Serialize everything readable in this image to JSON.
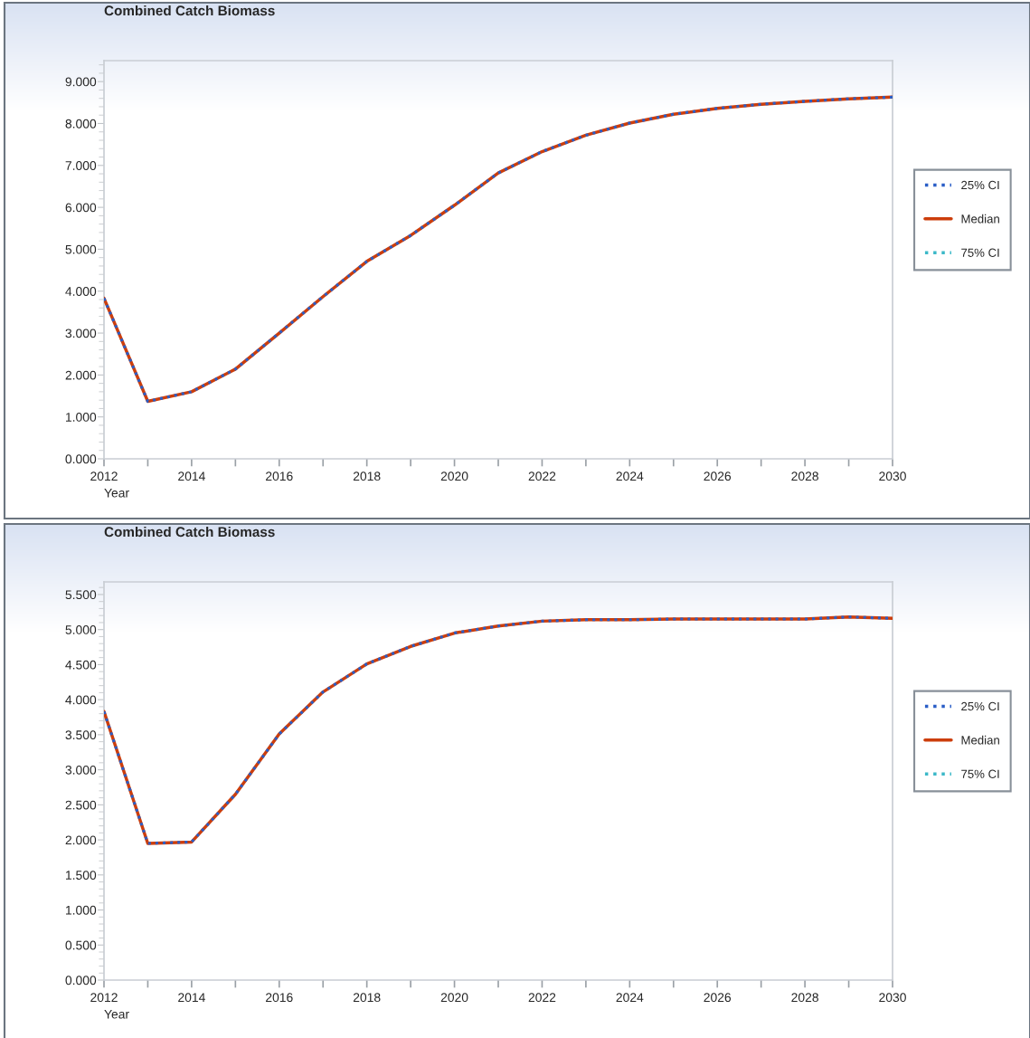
{
  "chart_data": [
    {
      "type": "line",
      "title": "Combined Catch Biomass",
      "xlabel": "Year",
      "legend": "right",
      "grid": false,
      "x": [
        2012,
        2013,
        2014,
        2015,
        2016,
        2017,
        2018,
        2019,
        2020,
        2021,
        2022,
        2023,
        2024,
        2025,
        2026,
        2027,
        2028,
        2029,
        2030
      ],
      "xlim": [
        2012,
        2030
      ],
      "xticks": [
        2012,
        {
          "value": 2013,
          "label": null
        },
        2014,
        {
          "value": 2015,
          "label": null
        },
        2016,
        {
          "value": 2017,
          "label": null
        },
        2018,
        {
          "value": 2019,
          "label": null
        },
        2020,
        {
          "value": 2021,
          "label": null
        },
        2022,
        {
          "value": 2023,
          "label": null
        },
        2024,
        {
          "value": 2025,
          "label": null
        },
        2026,
        {
          "value": 2027,
          "label": null
        },
        2028,
        {
          "value": 2029,
          "label": null
        },
        2030
      ],
      "ylim": [
        0,
        9.5
      ],
      "yticks": [
        {
          "value": 0,
          "label": "0.000"
        },
        {
          "value": 1,
          "label": "1.000"
        },
        {
          "value": 2,
          "label": "2.000"
        },
        {
          "value": 3,
          "label": "3.000"
        },
        {
          "value": 4,
          "label": "4.000"
        },
        {
          "value": 5,
          "label": "5.000"
        },
        {
          "value": 6,
          "label": "6.000"
        },
        {
          "value": 7,
          "label": "7.000"
        },
        {
          "value": 8,
          "label": "8.000"
        },
        {
          "value": 9,
          "label": "9.000"
        }
      ],
      "series": [
        {
          "name": "25% CI",
          "color": "#2a5ec7",
          "line_style": "dotted",
          "values": [
            3.83,
            1.37,
            1.6,
            2.14,
            3.0,
            3.87,
            4.71,
            5.33,
            6.05,
            6.82,
            7.33,
            7.72,
            8.01,
            8.22,
            8.36,
            8.46,
            8.53,
            8.59,
            8.63
          ]
        },
        {
          "name": "Median",
          "color": "#cc3e0c",
          "line_style": "solid",
          "values": [
            3.83,
            1.37,
            1.6,
            2.14,
            3.0,
            3.87,
            4.71,
            5.33,
            6.05,
            6.82,
            7.33,
            7.72,
            8.01,
            8.22,
            8.36,
            8.46,
            8.53,
            8.59,
            8.63
          ]
        },
        {
          "name": "75% CI",
          "color": "#3bb8c8",
          "line_style": "dotted",
          "values": [
            null,
            null,
            null,
            null,
            null,
            null,
            null,
            null,
            null,
            null,
            null,
            null,
            null,
            null,
            null,
            null,
            null,
            null,
            null
          ]
        }
      ]
    },
    {
      "type": "line",
      "title": "Combined Catch Biomass",
      "xlabel": "Year",
      "legend": "right",
      "grid": false,
      "x": [
        2012,
        2013,
        2014,
        2015,
        2016,
        2017,
        2018,
        2019,
        2020,
        2021,
        2022,
        2023,
        2024,
        2025,
        2026,
        2027,
        2028,
        2029,
        2030
      ],
      "xlim": [
        2012,
        2030
      ],
      "xticks": [
        2012,
        {
          "value": 2013,
          "label": null
        },
        2014,
        {
          "value": 2015,
          "label": null
        },
        2016,
        {
          "value": 2017,
          "label": null
        },
        2018,
        {
          "value": 2019,
          "label": null
        },
        2020,
        {
          "value": 2021,
          "label": null
        },
        2022,
        {
          "value": 2023,
          "label": null
        },
        2024,
        {
          "value": 2025,
          "label": null
        },
        2026,
        {
          "value": 2027,
          "label": null
        },
        2028,
        {
          "value": 2029,
          "label": null
        },
        2030
      ],
      "ylim": [
        0,
        5.68
      ],
      "yticks": [
        {
          "value": 0,
          "label": "0.000"
        },
        {
          "value": 0.5,
          "label": "0.500"
        },
        {
          "value": 1,
          "label": "1.000"
        },
        {
          "value": 1.5,
          "label": "1.500"
        },
        {
          "value": 2,
          "label": "2.000"
        },
        {
          "value": 2.5,
          "label": "2.500"
        },
        {
          "value": 3,
          "label": "3.000"
        },
        {
          "value": 3.5,
          "label": "3.500"
        },
        {
          "value": 4,
          "label": "4.000"
        },
        {
          "value": 4.5,
          "label": "4.500"
        },
        {
          "value": 5,
          "label": "5.000"
        },
        {
          "value": 5.5,
          "label": "5.500"
        }
      ],
      "series": [
        {
          "name": "25% CI",
          "color": "#2a5ec7",
          "line_style": "dotted",
          "values": [
            3.83,
            1.95,
            1.97,
            2.65,
            3.51,
            4.11,
            4.51,
            4.76,
            4.95,
            5.05,
            5.12,
            5.14,
            5.14,
            5.15,
            5.15,
            5.15,
            5.15,
            5.18,
            5.16
          ]
        },
        {
          "name": "Median",
          "color": "#cc3e0c",
          "line_style": "solid",
          "values": [
            3.83,
            1.95,
            1.97,
            2.65,
            3.51,
            4.11,
            4.51,
            4.76,
            4.95,
            5.05,
            5.12,
            5.14,
            5.14,
            5.15,
            5.15,
            5.15,
            5.15,
            5.18,
            5.16
          ]
        },
        {
          "name": "75% CI",
          "color": "#3bb8c8",
          "line_style": "dotted",
          "values": [
            null,
            null,
            null,
            null,
            null,
            null,
            null,
            null,
            null,
            null,
            null,
            null,
            null,
            null,
            null,
            null,
            null,
            null,
            null
          ]
        }
      ]
    }
  ]
}
